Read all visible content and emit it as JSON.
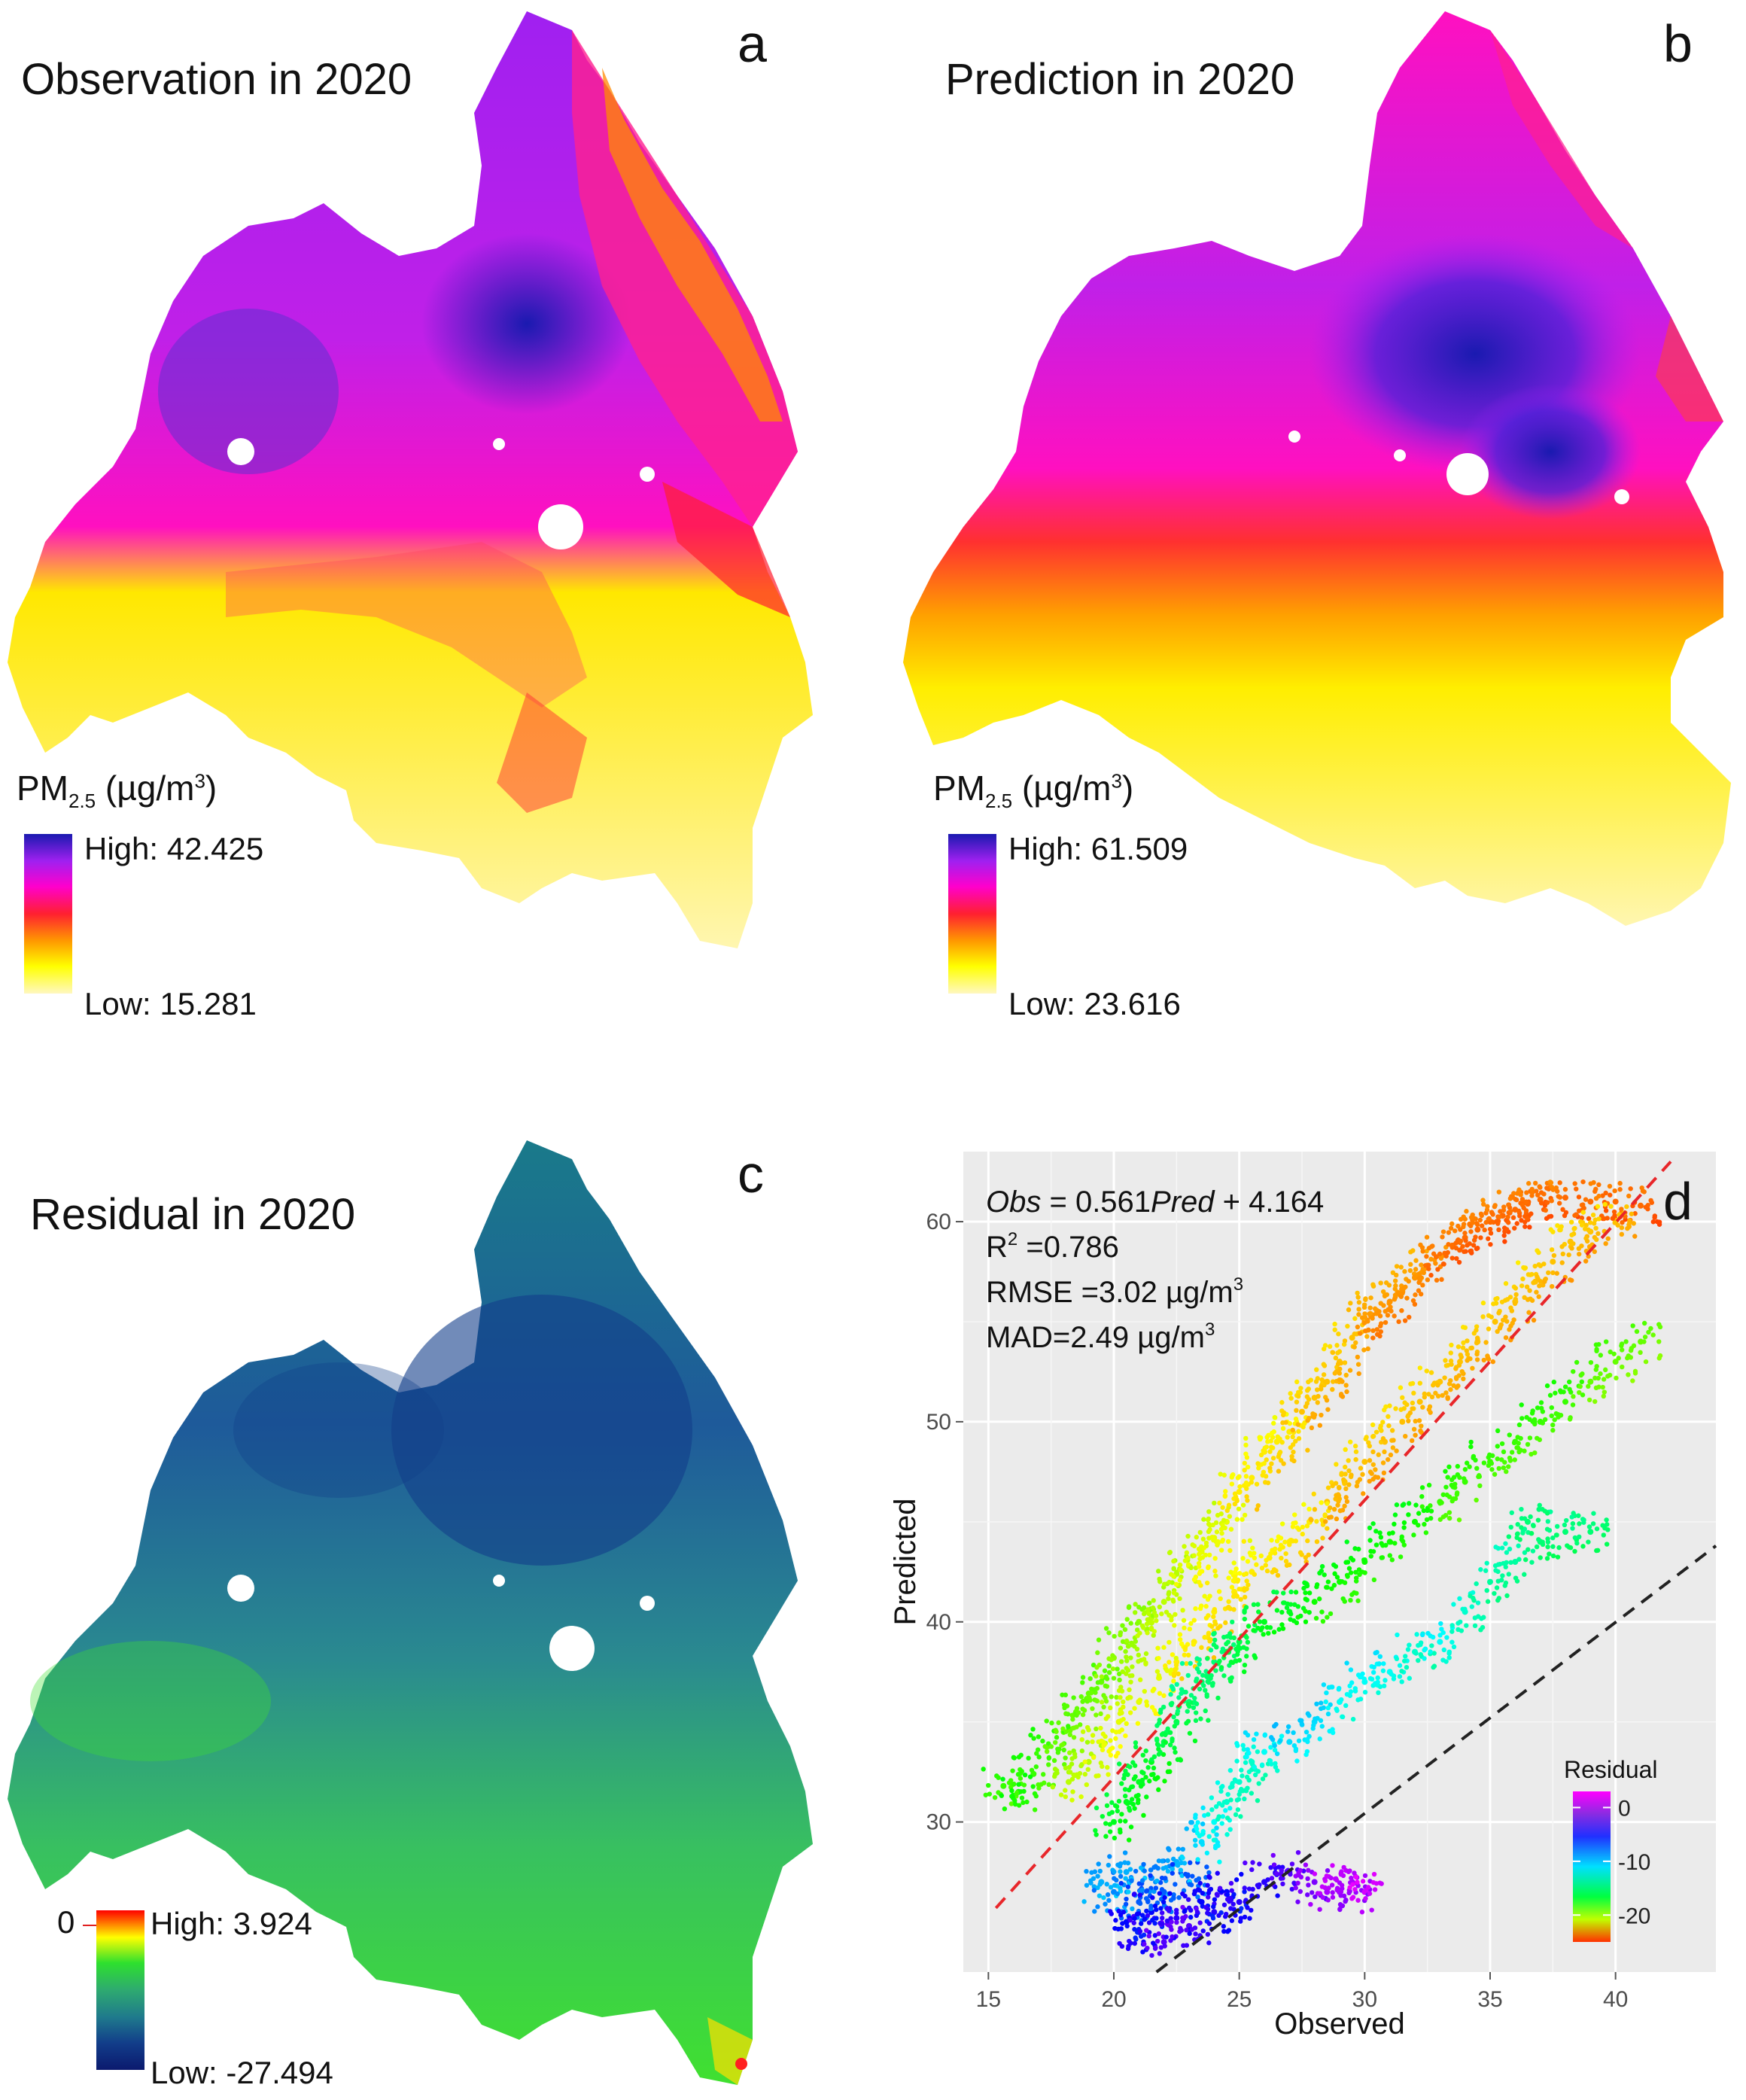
{
  "panels": {
    "a": {
      "letter": "a",
      "title": "Observation in 2020",
      "legend_title_main": "PM",
      "legend_title_sub": "2.5",
      "legend_title_unit_pre": " (µg/m",
      "legend_title_unit_sup": "3",
      "legend_title_unit_post": ")",
      "high_label": "High: 42.425",
      "low_label": "Low: 15.281",
      "colors": [
        "#1a1ab0",
        "#a020f0",
        "#ff00cc",
        "#ff2030",
        "#ff9900",
        "#ffff00",
        "#fff8c0"
      ]
    },
    "b": {
      "letter": "b",
      "title": "Prediction in 2020",
      "legend_title_main": "PM",
      "legend_title_sub": "2.5",
      "legend_title_unit_pre": " (µg/m",
      "legend_title_unit_sup": "3",
      "legend_title_unit_post": ")",
      "high_label": "High: 61.509",
      "low_label": "Low: 23.616",
      "colors": [
        "#1a1ab0",
        "#a020f0",
        "#ff00cc",
        "#ff2030",
        "#ff9900",
        "#ffff00",
        "#fff8c0"
      ]
    },
    "c": {
      "letter": "c",
      "title": "Residual in 2020",
      "zero_label": "0",
      "high_label": "High: 3.924",
      "low_label": "Low: -27.494",
      "colors": [
        "#ff0000",
        "#ffff00",
        "#2ee02e",
        "#2eaa70",
        "#1f7a8c",
        "#123e8a",
        "#0b1a6e"
      ]
    },
    "d": {
      "letter": "d",
      "eq_obs": "Obs",
      "eq_mid": " = 0.561",
      "eq_pred": "Pred",
      "eq_end": " + 4.164",
      "r2_pre": "R",
      "r2_sup": "2",
      "r2_post": " =0.786",
      "rmse_pre": "RMSE =3.02 µg/m",
      "rmse_sup": "3",
      "mad_pre": "MAD=2.49 µg/m",
      "mad_sup": "3",
      "legend_title": "Residual",
      "legend_ticks": [
        "0",
        "-10",
        "-20"
      ]
    }
  },
  "chart_data": {
    "type": "scatter",
    "xlabel": "Observed",
    "ylabel": "Predicted",
    "xlim": [
      14,
      44
    ],
    "ylim": [
      22.5,
      63.5
    ],
    "x_ticks": [
      15,
      20,
      25,
      30,
      35,
      40
    ],
    "y_ticks": [
      30,
      40,
      50,
      60
    ],
    "lines": [
      {
        "style": "dashed",
        "color": "#e8262a",
        "from": [
          15.3,
          25.7
        ],
        "to": [
          42.2,
          63
        ]
      },
      {
        "style": "dashed",
        "color": "#222222",
        "from": [
          21.7,
          22.5
        ],
        "to": [
          44,
          43.8
        ]
      }
    ],
    "colorbar": {
      "title": "Residual",
      "min": -25,
      "max": 3,
      "ticks": [
        0,
        -10,
        -20
      ]
    },
    "points": [
      [
        15.6,
        31.8,
        -16
      ],
      [
        16.2,
        31.5,
        -15
      ],
      [
        16.8,
        32.4,
        -16
      ],
      [
        17.4,
        33.8,
        -16
      ],
      [
        18.0,
        34.5,
        -17
      ],
      [
        18.5,
        35.5,
        -17
      ],
      [
        19.0,
        36.2,
        -17
      ],
      [
        19.5,
        37.0,
        -17
      ],
      [
        20.0,
        38.2,
        -18
      ],
      [
        20.5,
        39.0,
        -18
      ],
      [
        21.0,
        40.0,
        -18
      ],
      [
        21.5,
        40.2,
        -19
      ],
      [
        22.0,
        41.0,
        -19
      ],
      [
        22.5,
        42.4,
        -19
      ],
      [
        23.0,
        42.8,
        -20
      ],
      [
        23.5,
        43.5,
        -20
      ],
      [
        24.0,
        44.2,
        -20
      ],
      [
        24.5,
        45.0,
        -20
      ],
      [
        25.0,
        46.5,
        -21
      ],
      [
        25.5,
        47.2,
        -21
      ],
      [
        26.0,
        48.5,
        -21
      ],
      [
        26.5,
        49.0,
        -21
      ],
      [
        27.0,
        49.5,
        -21
      ],
      [
        27.5,
        50.5,
        -22
      ],
      [
        28.0,
        51.2,
        -22
      ],
      [
        28.5,
        52.0,
        -22
      ],
      [
        29.0,
        53.0,
        -22
      ],
      [
        29.5,
        54.2,
        -22
      ],
      [
        30.0,
        55.0,
        -23
      ],
      [
        30.5,
        55.5,
        -23
      ],
      [
        31.0,
        56.0,
        -23
      ],
      [
        31.5,
        56.5,
        -23
      ],
      [
        32.0,
        57.2,
        -23
      ],
      [
        32.5,
        57.8,
        -23
      ],
      [
        33.0,
        58.3,
        -24
      ],
      [
        33.5,
        58.8,
        -24
      ],
      [
        34.0,
        59.2,
        -24
      ],
      [
        34.5,
        59.6,
        -24
      ],
      [
        35.0,
        60.0,
        -24
      ],
      [
        35.5,
        60.3,
        -24
      ],
      [
        36.0,
        60.6,
        -24
      ],
      [
        36.5,
        60.9,
        -24
      ],
      [
        37.0,
        61.1,
        -24
      ],
      [
        38.0,
        61.2,
        -24
      ],
      [
        39.0,
        61.0,
        -24
      ],
      [
        40.0,
        61.0,
        -24
      ],
      [
        41.0,
        60.8,
        -24
      ],
      [
        18.2,
        32.0,
        -19
      ],
      [
        19.0,
        33.0,
        -19
      ],
      [
        19.5,
        34.0,
        -20
      ],
      [
        20.2,
        35.0,
        -20
      ],
      [
        21.0,
        36.0,
        -20
      ],
      [
        21.8,
        37.2,
        -20
      ],
      [
        22.5,
        38.0,
        -21
      ],
      [
        23.2,
        39.0,
        -21
      ],
      [
        24.0,
        40.5,
        -21
      ],
      [
        24.8,
        41.5,
        -21
      ],
      [
        25.5,
        42.5,
        -21
      ],
      [
        26.2,
        43.2,
        -21
      ],
      [
        27.0,
        44.0,
        -21
      ],
      [
        27.8,
        45.0,
        -21
      ],
      [
        28.5,
        46.0,
        -22
      ],
      [
        29.2,
        47.0,
        -22
      ],
      [
        30.0,
        48.0,
        -22
      ],
      [
        30.8,
        49.0,
        -22
      ],
      [
        31.5,
        50.0,
        -22
      ],
      [
        32.2,
        51.0,
        -22
      ],
      [
        33.0,
        52.0,
        -22
      ],
      [
        33.8,
        53.0,
        -22
      ],
      [
        34.5,
        54.0,
        -22
      ],
      [
        35.2,
        55.0,
        -22
      ],
      [
        36.0,
        56.0,
        -22
      ],
      [
        36.8,
        57.0,
        -22
      ],
      [
        37.5,
        58.0,
        -22
      ],
      [
        38.2,
        59.0,
        -22
      ],
      [
        39.0,
        59.5,
        -22
      ],
      [
        40.0,
        60.0,
        -22
      ],
      [
        20.0,
        30.0,
        -14
      ],
      [
        20.5,
        31.0,
        -14
      ],
      [
        21.0,
        32.0,
        -14
      ],
      [
        21.5,
        33.0,
        -14
      ],
      [
        22.0,
        34.0,
        -13
      ],
      [
        22.5,
        35.0,
        -13
      ],
      [
        23.0,
        36.0,
        -12
      ],
      [
        23.5,
        37.0,
        -12
      ],
      [
        24.0,
        38.0,
        -12
      ],
      [
        24.5,
        38.5,
        -13
      ],
      [
        25.0,
        39.0,
        -13
      ],
      [
        26.0,
        40.0,
        -14
      ],
      [
        27.0,
        40.5,
        -14
      ],
      [
        28.0,
        41.0,
        -15
      ],
      [
        29.0,
        42.0,
        -15
      ],
      [
        30.0,
        43.0,
        -15
      ],
      [
        31.0,
        44.0,
        -15
      ],
      [
        32.0,
        45.0,
        -15
      ],
      [
        33.0,
        46.0,
        -16
      ],
      [
        34.0,
        47.0,
        -16
      ],
      [
        35.0,
        48.0,
        -16
      ],
      [
        36.0,
        49.0,
        -16
      ],
      [
        37.0,
        50.0,
        -16
      ],
      [
        38.0,
        51.0,
        -16
      ],
      [
        39.0,
        52.0,
        -17
      ],
      [
        40.0,
        53.0,
        -17
      ],
      [
        41.0,
        54.0,
        -17
      ],
      [
        19.5,
        27.0,
        -7
      ],
      [
        20.0,
        26.5,
        -6
      ],
      [
        20.5,
        27.5,
        -7
      ],
      [
        21.0,
        26.0,
        -5
      ],
      [
        21.5,
        27.2,
        -6
      ],
      [
        22.0,
        26.5,
        -5
      ],
      [
        22.5,
        28.0,
        -7
      ],
      [
        23.0,
        27.0,
        -5
      ],
      [
        23.5,
        29.0,
        -8
      ],
      [
        24.0,
        30.0,
        -9
      ],
      [
        24.5,
        31.0,
        -10
      ],
      [
        25.0,
        32.0,
        -10
      ],
      [
        25.5,
        33.0,
        -10
      ],
      [
        26.0,
        33.5,
        -9
      ],
      [
        27.0,
        34.0,
        -8
      ],
      [
        28.0,
        35.0,
        -8
      ],
      [
        29.0,
        36.0,
        -9
      ],
      [
        30.0,
        37.0,
        -9
      ],
      [
        31.0,
        37.5,
        -9
      ],
      [
        32.0,
        38.5,
        -10
      ],
      [
        33.0,
        39.0,
        -9
      ],
      [
        34.0,
        40.5,
        -10
      ],
      [
        35.0,
        42.0,
        -11
      ],
      [
        36.0,
        43.0,
        -11
      ],
      [
        37.0,
        44.0,
        -12
      ],
      [
        38.0,
        44.5,
        -12
      ],
      [
        39.0,
        44.5,
        -12
      ],
      [
        36.5,
        45.0,
        -12
      ],
      [
        20.5,
        25.0,
        -3
      ],
      [
        21.0,
        24.5,
        -2
      ],
      [
        21.5,
        25.5,
        -3
      ],
      [
        22.0,
        24.0,
        -1
      ],
      [
        22.5,
        25.2,
        -2
      ],
      [
        23.0,
        24.8,
        -1
      ],
      [
        23.5,
        26.0,
        -3
      ],
      [
        24.0,
        25.5,
        -2
      ],
      [
        24.5,
        26.5,
        -3
      ],
      [
        25.0,
        26.0,
        -2
      ],
      [
        26.0,
        27.0,
        -2
      ],
      [
        27.0,
        27.5,
        -1
      ],
      [
        28.0,
        27.0,
        0
      ],
      [
        28.5,
        26.5,
        1
      ],
      [
        29.0,
        26.5,
        1
      ],
      [
        29.5,
        27.0,
        1
      ],
      [
        30.0,
        26.5,
        2
      ]
    ]
  }
}
